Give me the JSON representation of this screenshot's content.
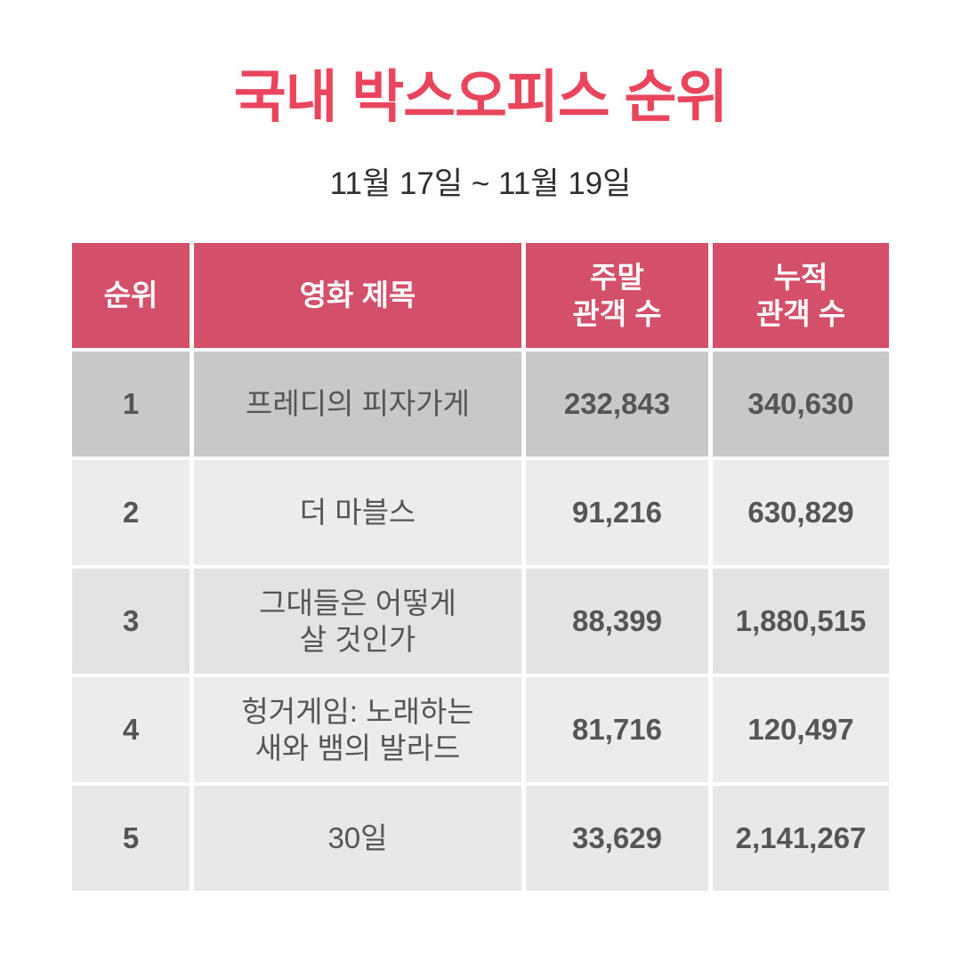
{
  "page": {
    "title": "국내 박스오피스 순위",
    "subtitle": "11월 17일 ~ 11월 19일"
  },
  "table": {
    "headers": [
      "순위",
      "영화 제목",
      "주말\n관객 수",
      "누적\n관객 수"
    ],
    "rows": [
      {
        "rank": "1",
        "title": "프레디의 피자가게",
        "weekend": "232,843",
        "total": "340,630"
      },
      {
        "rank": "2",
        "title": "더 마블스",
        "weekend": "91,216",
        "total": "630,829"
      },
      {
        "rank": "3",
        "title": "그대들은 어떻게\n살 것인가",
        "weekend": "88,399",
        "total": "1,880,515"
      },
      {
        "rank": "4",
        "title": "헝거게임: 노래하는\n새와 뱀의 발라드",
        "weekend": "81,716",
        "total": "120,497"
      },
      {
        "rank": "5",
        "title": "30일",
        "weekend": "33,629",
        "total": "2,141,267"
      }
    ]
  },
  "colors": {
    "title_accent": "#e9455c",
    "header_bg": "#d4506a",
    "header_text": "#ffffff",
    "top_row_bg": "#c8c8c8",
    "row_bg_light": "#ececec",
    "row_bg_mid": "#e3e3e3",
    "body_text": "#555555"
  },
  "chart_data": {
    "type": "table",
    "title": "국내 박스오피스 순위",
    "subtitle": "11월 17일 ~ 11월 19일",
    "columns": [
      "순위",
      "영화 제목",
      "주말 관객 수",
      "누적 관객 수"
    ],
    "rows": [
      [
        1,
        "프레디의 피자가게",
        232843,
        340630
      ],
      [
        2,
        "더 마블스",
        91216,
        630829
      ],
      [
        3,
        "그대들은 어떻게 살 것인가",
        88399,
        1880515
      ],
      [
        4,
        "헝거게임: 노래하는 새와 뱀의 발라드",
        81716,
        120497
      ],
      [
        5,
        "30일",
        33629,
        2141267
      ]
    ]
  }
}
